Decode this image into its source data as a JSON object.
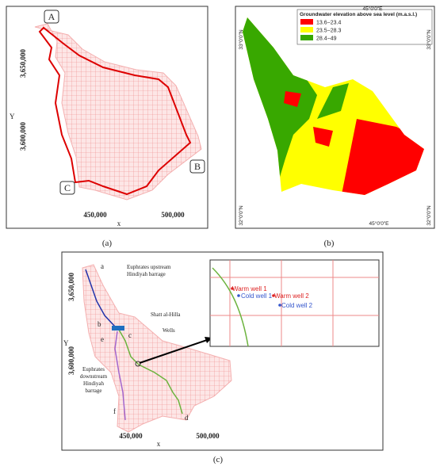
{
  "panel_a": {
    "y_label": "Y",
    "y_ticks": [
      "3,650,000",
      "3,600,000"
    ],
    "x_label": "x",
    "x_ticks": [
      "450,000",
      "500,000"
    ],
    "callouts": [
      "A",
      "B",
      "C"
    ],
    "caption": "(a)"
  },
  "panel_b": {
    "legend_title": "Groundwater elevation above sea level (m.a.s.l.)",
    "legend": [
      {
        "label": "13.6−23.4",
        "color": "#ff0000"
      },
      {
        "label": "23.5−28.3",
        "color": "#ffff00"
      },
      {
        "label": "28.4−49",
        "color": "#38a800"
      }
    ],
    "lat_top": "33°0'0\"N",
    "lat_bottom": "32°0'0\"N",
    "lon": "45°0'0\"E",
    "caption": "(b)"
  },
  "panel_c": {
    "y_label": "Y",
    "y_ticks": [
      "3,650,000",
      "3,600,000"
    ],
    "x_label": "x",
    "x_ticks": [
      "450,000",
      "500,000"
    ],
    "points": [
      "a",
      "b",
      "c",
      "d",
      "e",
      "f"
    ],
    "upstream": [
      "Euphrates upstream",
      "Hindiyah barrage"
    ],
    "shatt": "Shatt al-Hilla",
    "wells_label": "Wells",
    "downstream": [
      "Euphrates",
      "downstream",
      "Hindiyah",
      "barrage"
    ],
    "inset": [
      "Warm well 1",
      "Cold well 1",
      "Warm well 2",
      "Cold well 2"
    ],
    "caption": "(c)"
  }
}
